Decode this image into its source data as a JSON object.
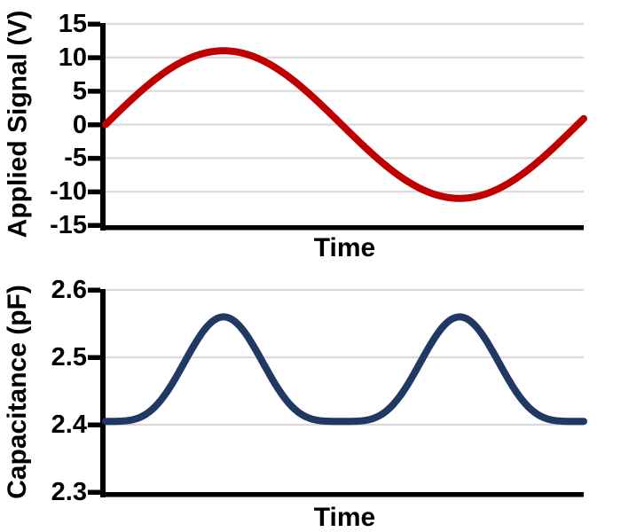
{
  "figure": {
    "background_color": "#FFFFFF",
    "axis_color": "#000000",
    "gridline_color": "#D9D9D9",
    "tick_label_color": "#000000"
  },
  "chart_data": [
    {
      "id": "applied-signal",
      "type": "line",
      "title": "",
      "xlabel": "Time",
      "ylabel": "Applied Signal (V)",
      "ylim": [
        -15,
        15
      ],
      "ytick_labels": [
        "15",
        "10",
        "5",
        "0",
        "-5",
        "-10",
        "-15"
      ],
      "x_tick_labels_visible": false,
      "grid": true,
      "legend": false,
      "series": [
        {
          "name": "applied-signal-sine",
          "color": "#C00000",
          "line_width": 8,
          "model": {
            "kind": "sine",
            "offset": 0,
            "amplitude": 11,
            "cycles": 1.013,
            "phase_deg": 0
          },
          "key_points": {
            "start_v": 0,
            "peak_v": 11,
            "trough_v": -11,
            "end_v": 0.9,
            "peak_x_fraction": 0.247,
            "trough_x_fraction": 0.74
          }
        }
      ]
    },
    {
      "id": "capacitance",
      "type": "line",
      "title": "",
      "xlabel": "Time",
      "ylabel": "Capacitance (pF)",
      "ylim": [
        2.3,
        2.6
      ],
      "ytick_labels": [
        "2.6",
        "2.5",
        "2.4",
        "2.3"
      ],
      "x_tick_labels_visible": false,
      "grid": true,
      "legend": false,
      "series": [
        {
          "name": "capacitance-curve",
          "color": "#1F3864",
          "line_width": 8,
          "model": {
            "kind": "sine-pow4",
            "baseline": 2.405,
            "amplitude": 0.155,
            "cycles": 1.013,
            "phase_deg": 0
          },
          "key_points": {
            "baseline_pf": 2.405,
            "peak_pf": 2.56,
            "num_peaks": 2,
            "peak_x_fractions": [
              0.247,
              0.74
            ]
          }
        }
      ]
    }
  ]
}
